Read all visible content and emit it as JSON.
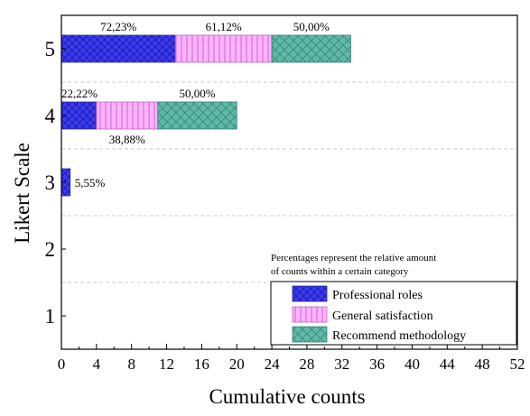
{
  "chart_data": {
    "type": "bar",
    "orientation": "horizontal",
    "stacked": true,
    "xlabel": "Cumulative counts",
    "ylabel": "Likert Scale",
    "xlim": [
      0,
      52
    ],
    "xticks": [
      0,
      4,
      8,
      12,
      16,
      20,
      24,
      28,
      32,
      36,
      40,
      44,
      48,
      52
    ],
    "categories": [
      "1",
      "2",
      "3",
      "4",
      "5"
    ],
    "series": [
      {
        "name": "Professional roles",
        "values": [
          0,
          0,
          1,
          4,
          13
        ],
        "color": "#3b3bf5",
        "pattern": "crosshatch"
      },
      {
        "name": "General satisfaction",
        "values": [
          0,
          0,
          0,
          7,
          11
        ],
        "color": "#ffb3ff",
        "pattern": "vertical-lines"
      },
      {
        "name": "Recommend methodology",
        "values": [
          0,
          0,
          0,
          9,
          9
        ],
        "color": "#5fb8a8",
        "pattern": "diagonal-crosshatch"
      }
    ],
    "bar_labels": [
      {
        "category": "5",
        "series": "Professional roles",
        "text": "72,23%"
      },
      {
        "category": "5",
        "series": "General satisfaction",
        "text": "61,12%"
      },
      {
        "category": "5",
        "series": "Recommend methodology",
        "text": "50,00%"
      },
      {
        "category": "4",
        "series": "Professional roles",
        "text": "22,22%"
      },
      {
        "category": "4",
        "series": "General satisfaction",
        "text": "38,88%"
      },
      {
        "category": "4",
        "series": "Recommend methodology",
        "text": "50,00%"
      },
      {
        "category": "3",
        "series": "Professional roles",
        "text": "5,55%"
      }
    ],
    "annotation": [
      "Percentages represent the relative amount",
      "of counts within a certain category"
    ],
    "legend": {
      "position": "bottom-right"
    }
  }
}
